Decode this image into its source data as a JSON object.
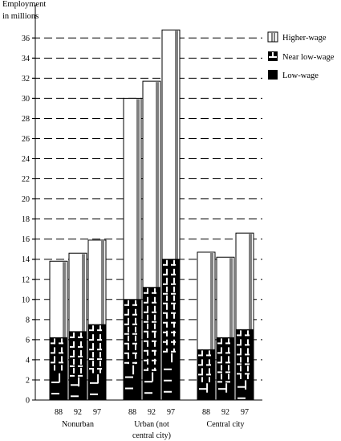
{
  "chart_data": {
    "type": "bar",
    "stacked": true,
    "ylabel_lines": [
      "Employment",
      "in millions"
    ],
    "ylim": [
      0,
      37
    ],
    "yticks": [
      0,
      2,
      4,
      6,
      8,
      10,
      12,
      14,
      16,
      18,
      20,
      22,
      24,
      26,
      28,
      30,
      32,
      34,
      36
    ],
    "grid": true,
    "legend_position": "top-right",
    "groups": [
      {
        "name_lines": [
          "Nonurban"
        ],
        "years": [
          "88",
          "92",
          "97"
        ]
      },
      {
        "name_lines": [
          "Urban (not",
          "central city)"
        ],
        "years": [
          "88",
          "92",
          "97"
        ]
      },
      {
        "name_lines": [
          "Central city"
        ],
        "years": [
          "88",
          "92",
          "97"
        ]
      }
    ],
    "series": [
      {
        "name": "Low-wage",
        "values": [
          [
            2.7,
            2.3,
            2.6
          ],
          [
            3.5,
            2.8,
            4.7
          ],
          [
            1.7,
            1.7,
            2.0
          ]
        ]
      },
      {
        "name": "Near low-wage",
        "values": [
          [
            3.5,
            4.5,
            4.9
          ],
          [
            6.5,
            8.4,
            9.3
          ],
          [
            3.3,
            4.5,
            5.0
          ]
        ]
      },
      {
        "name": "Higher-wage",
        "values": [
          [
            7.6,
            7.8,
            8.4
          ],
          [
            20.0,
            20.5,
            22.8
          ],
          [
            9.7,
            8.0,
            9.6
          ]
        ]
      }
    ],
    "legend": [
      "Higher-wage",
      "Near low-wage",
      "Low-wage"
    ]
  }
}
